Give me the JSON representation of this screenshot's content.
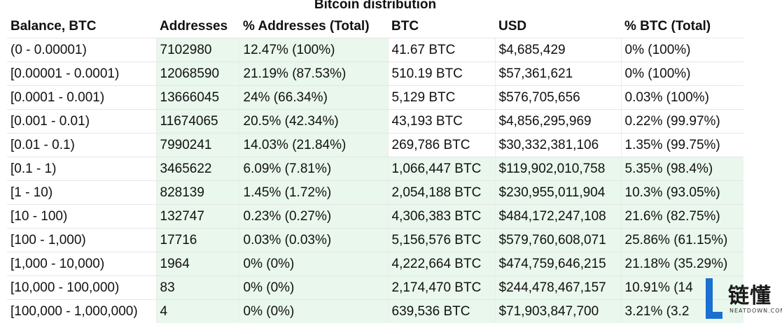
{
  "caption": "Bitcoin distribution",
  "columns": [
    "Balance, BTC",
    "Addresses",
    "% Addresses (Total)",
    "BTC",
    "USD",
    "% BTC (Total)"
  ],
  "rows": [
    {
      "balance": "(0 - 0.00001)",
      "addresses": "7102980",
      "pct_addresses": "12.47% (100%)",
      "btc": "41.67 BTC",
      "usd": "$4,685,429",
      "pct_btc": "0% (100%)"
    },
    {
      "balance": "[0.00001 - 0.0001)",
      "addresses": "12068590",
      "pct_addresses": "21.19% (87.53%)",
      "btc": "510.19 BTC",
      "usd": "$57,361,621",
      "pct_btc": "0% (100%)"
    },
    {
      "balance": "[0.0001 - 0.001)",
      "addresses": "13666045",
      "pct_addresses": "24% (66.34%)",
      "btc": "5,129 BTC",
      "usd": "$576,705,656",
      "pct_btc": "0.03% (100%)"
    },
    {
      "balance": "[0.001 - 0.01)",
      "addresses": "11674065",
      "pct_addresses": "20.5% (42.34%)",
      "btc": "43,193 BTC",
      "usd": "$4,856,295,969",
      "pct_btc": "0.22% (99.97%)"
    },
    {
      "balance": "[0.01 - 0.1)",
      "addresses": "7990241",
      "pct_addresses": "14.03% (21.84%)",
      "btc": "269,786 BTC",
      "usd": "$30,332,381,106",
      "pct_btc": "1.35% (99.75%)"
    },
    {
      "balance": "[0.1 - 1)",
      "addresses": "3465622",
      "pct_addresses": "6.09% (7.81%)",
      "btc": "1,066,447 BTC",
      "usd": "$119,902,010,758",
      "pct_btc": "5.35% (98.4%)"
    },
    {
      "balance": "[1 - 10)",
      "addresses": "828139",
      "pct_addresses": "1.45% (1.72%)",
      "btc": "2,054,188 BTC",
      "usd": "$230,955,011,904",
      "pct_btc": "10.3% (93.05%)"
    },
    {
      "balance": "[10 - 100)",
      "addresses": "132747",
      "pct_addresses": "0.23% (0.27%)",
      "btc": "4,306,383 BTC",
      "usd": "$484,172,247,108",
      "pct_btc": "21.6% (82.75%)"
    },
    {
      "balance": "[100 - 1,000)",
      "addresses": "17716",
      "pct_addresses": "0.03% (0.03%)",
      "btc": "5,156,576 BTC",
      "usd": "$579,760,608,071",
      "pct_btc": "25.86% (61.15%)"
    },
    {
      "balance": "[1,000 - 10,000)",
      "addresses": "1964",
      "pct_addresses": "0% (0%)",
      "btc": "4,222,664 BTC",
      "usd": "$474,759,646,215",
      "pct_btc": "21.18% (35.29%)"
    },
    {
      "balance": "[10,000 - 100,000)",
      "addresses": "83",
      "pct_addresses": "0% (0%)",
      "btc": "2,174,470 BTC",
      "usd": "$244,478,467,157",
      "pct_btc": "10.91% (14"
    },
    {
      "balance": "[100,000 - 1,000,000)",
      "addresses": "4",
      "pct_addresses": "0% (0%)",
      "btc": "639,536 BTC",
      "usd": "$71,903,847,700",
      "pct_btc": "3.21% (3.2"
    }
  ],
  "highlight_from_row": 5,
  "watermark": {
    "text": "链懂",
    "sub": "NEATDOWN.COM",
    "color": "#1a6fd1"
  }
}
